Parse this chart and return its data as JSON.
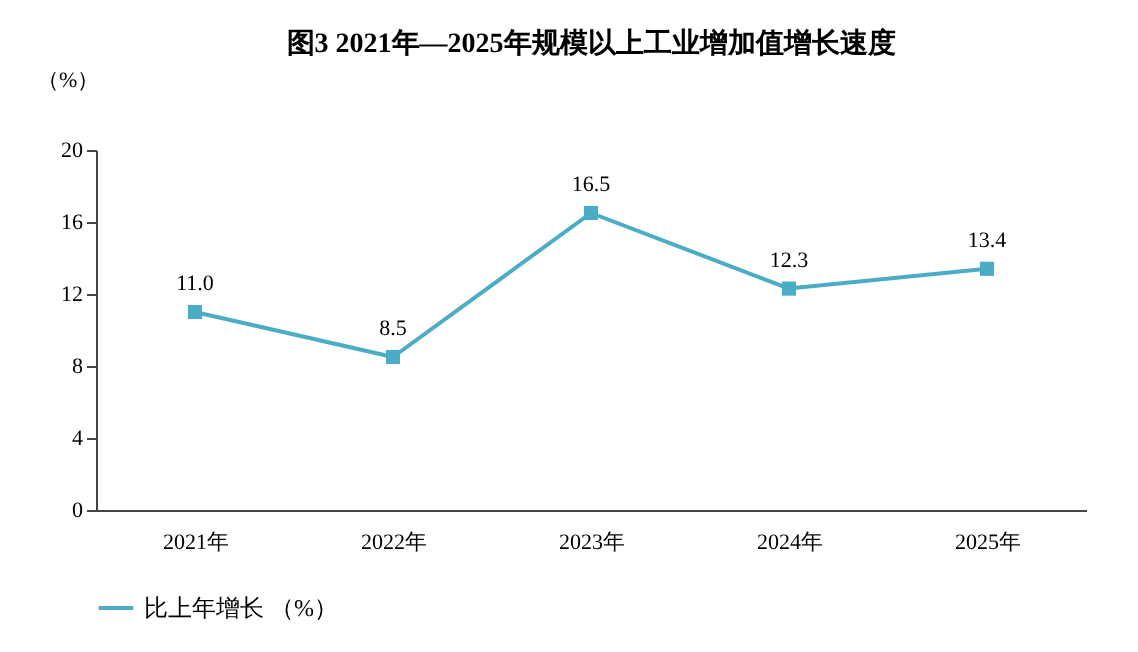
{
  "chart_data": {
    "type": "line",
    "title": "图3  2021年—2025年规模以上工业增加值增长速度",
    "ylabel": "（%）",
    "categories": [
      "2021年",
      "2022年",
      "2023年",
      "2024年",
      "2025年"
    ],
    "series": [
      {
        "name": "比上年增长  （%）",
        "color": "#4bacc6",
        "values": [
          11.0,
          8.5,
          16.5,
          12.3,
          13.4
        ],
        "value_labels": [
          "11.0",
          "8.5",
          "16.5",
          "12.3",
          "13.4"
        ]
      }
    ],
    "ylim": [
      0,
      20
    ],
    "yticks": [
      0,
      4,
      8,
      12,
      16,
      20
    ],
    "grid": false,
    "legend": "bottom",
    "marker": "square",
    "line_style": "solid"
  }
}
